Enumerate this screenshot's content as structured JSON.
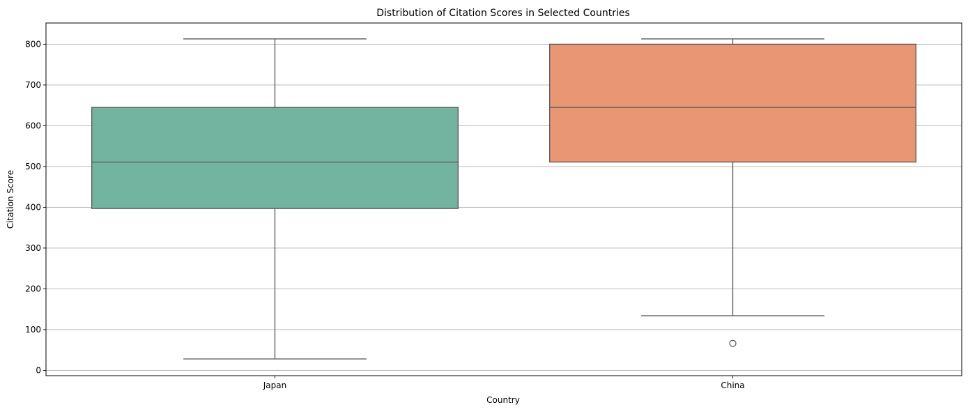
{
  "chart_data": {
    "type": "box",
    "title": "Distribution of Citation Scores in Selected Countries",
    "xlabel": "Country",
    "ylabel": "Citation Score",
    "ylim": [
      -13,
      852
    ],
    "yticks": [
      0,
      100,
      200,
      300,
      400,
      500,
      600,
      700,
      800
    ],
    "grid": "y",
    "categories": [
      "Japan",
      "China"
    ],
    "boxes": [
      {
        "category": "Japan",
        "whisker_low": 28,
        "q1": 397,
        "median": 511,
        "q3": 645,
        "whisker_high": 813,
        "outliers": [],
        "color": "#73b4a1"
      },
      {
        "category": "China",
        "whisker_low": 134,
        "q1": 511,
        "median": 645,
        "q3": 800,
        "whisker_high": 813,
        "outliers": [
          66
        ],
        "color": "#e99674"
      }
    ]
  }
}
